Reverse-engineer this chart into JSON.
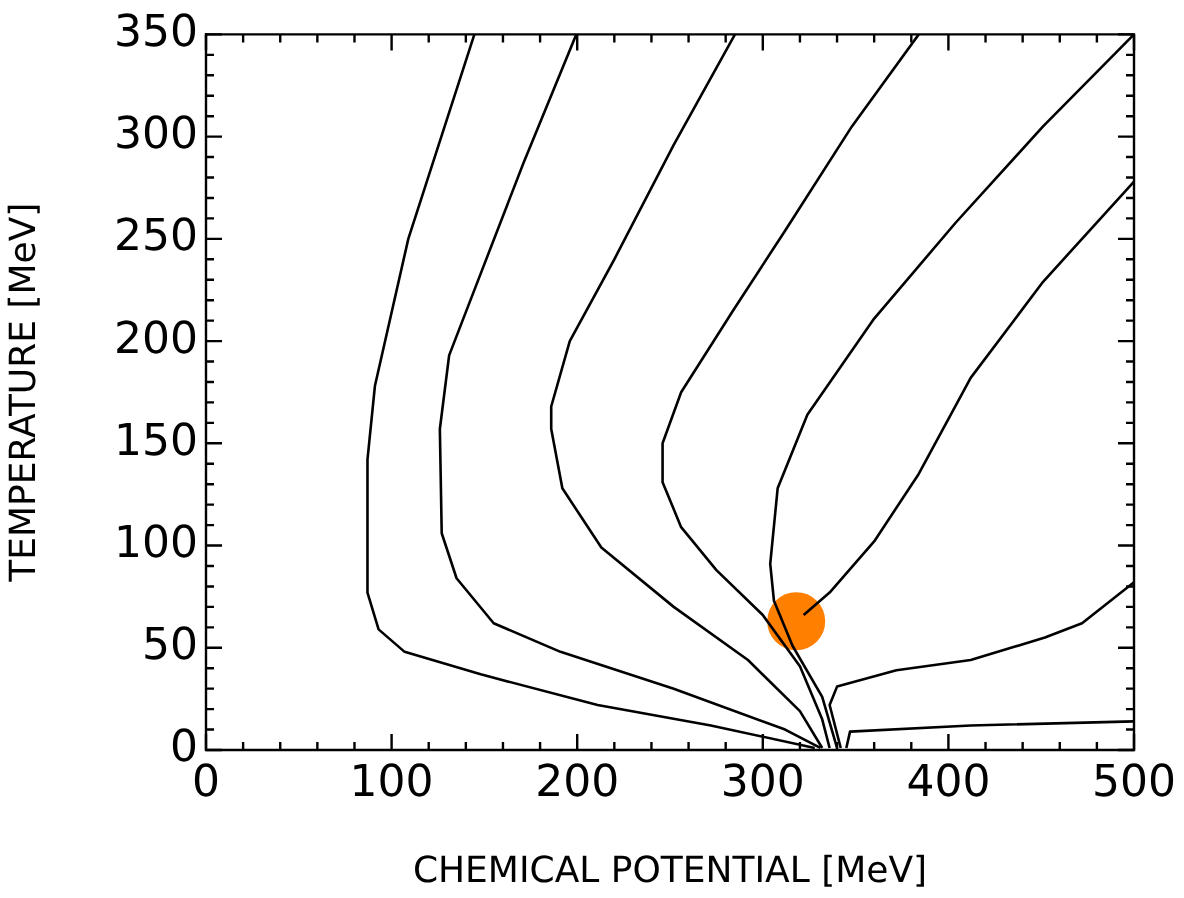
{
  "chart_data": {
    "type": "line",
    "xlabel": "CHEMICAL POTENTIAL [MeV]",
    "ylabel": "TEMPERATURE [MeV]",
    "xlim": [
      0,
      500
    ],
    "ylim": [
      0,
      350
    ],
    "xticks": [
      0,
      100,
      200,
      300,
      400,
      500
    ],
    "yticks": [
      0,
      50,
      100,
      150,
      200,
      250,
      300,
      350
    ],
    "grid": false,
    "legend": false,
    "marker": "none",
    "line_style": "solid",
    "series": [
      {
        "color": "#000000",
        "x": [
          144.6,
          109,
          91,
          87,
          87,
          93,
          107,
          148,
          211,
          272,
          328
        ],
        "values": [
          350,
          250,
          178,
          142,
          77,
          59,
          48,
          37,
          22,
          12,
          1
        ]
      },
      {
        "color": "#000000",
        "x": [
          199.5,
          171,
          148,
          131,
          126,
          127,
          135,
          155,
          191,
          252,
          312,
          331
        ],
        "values": [
          350,
          287,
          233,
          193,
          157,
          106,
          84,
          62,
          48,
          30,
          10,
          1
        ]
      },
      {
        "color": "#000000",
        "x": [
          285,
          252,
          220,
          196,
          186,
          186,
          192,
          213,
          252,
          292,
          320,
          332
        ],
        "values": [
          350,
          296,
          240,
          200,
          168,
          157,
          128,
          99,
          70,
          44,
          19,
          1
        ]
      },
      {
        "color": "#000000",
        "x": [
          384,
          348,
          312,
          284,
          256,
          246,
          246,
          256,
          275,
          300,
          320,
          332,
          336
        ],
        "values": [
          350,
          305,
          254,
          215,
          175,
          150,
          131,
          109,
          88,
          66,
          41,
          15,
          1
        ]
      },
      {
        "color": "#000000",
        "x": [
          500,
          451,
          404,
          360,
          324,
          308,
          304,
          306,
          316,
          332,
          340
        ],
        "values": [
          350,
          305,
          258,
          211,
          164,
          128,
          91,
          73,
          51,
          26,
          1
        ]
      },
      {
        "color": "#000000",
        "x": [
          500,
          451,
          412,
          384,
          360,
          336,
          322
        ],
        "values": [
          278,
          229,
          182,
          135,
          102,
          77,
          66
        ]
      },
      {
        "color": "#000000",
        "x": [
          500,
          472,
          452,
          412,
          372,
          340,
          336,
          342
        ],
        "values": [
          82,
          62,
          55,
          44,
          39,
          31,
          22,
          1
        ]
      },
      {
        "color": "#000000",
        "x": [
          500,
          412,
          347,
          345
        ],
        "values": [
          14,
          12,
          9,
          1
        ]
      },
      {
        "type": "scatter",
        "marker": "circle",
        "color": "#ff7f00",
        "x": [
          318
        ],
        "values": [
          63
        ]
      }
    ]
  }
}
